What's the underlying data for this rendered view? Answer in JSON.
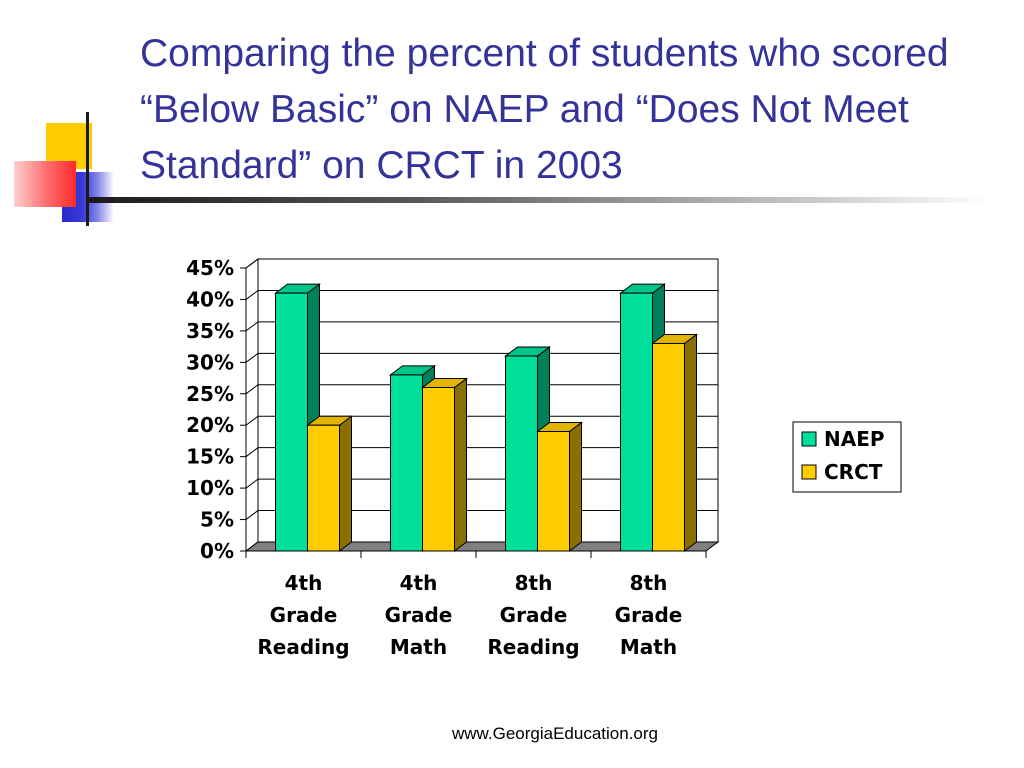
{
  "slide": {
    "title": "Comparing the percent of students who scored “Below Basic” on NAEP and “Does Not Meet Standard” on CRCT in 2003",
    "footer": "www.GeorgiaEducation.org"
  },
  "colors": {
    "title": "#333399",
    "naep": "#00E09A",
    "crct": "#FFCC00",
    "deco_yellow": "#FFCC00",
    "deco_blue": "#3333CC",
    "deco_red": "#FF3333"
  },
  "chart_data": {
    "type": "bar",
    "style": "3d-clustered",
    "categories": [
      "4th Grade Reading",
      "4th Grade Math",
      "8th Grade Reading",
      "8th Grade Math"
    ],
    "category_lines": [
      [
        "4th",
        "Grade",
        "Reading"
      ],
      [
        "4th",
        "Grade",
        "Math"
      ],
      [
        "8th",
        "Grade",
        "Reading"
      ],
      [
        "8th",
        "Grade",
        "Math"
      ]
    ],
    "series": [
      {
        "name": "NAEP",
        "values": [
          41,
          28,
          31,
          41
        ]
      },
      {
        "name": "CRCT",
        "values": [
          20,
          26,
          19,
          33
        ]
      }
    ],
    "ylim": [
      0,
      45
    ],
    "yticks": [
      "0%",
      "5%",
      "10%",
      "15%",
      "20%",
      "25%",
      "30%",
      "35%",
      "40%",
      "45%"
    ],
    "grid": true,
    "legend": "right"
  }
}
